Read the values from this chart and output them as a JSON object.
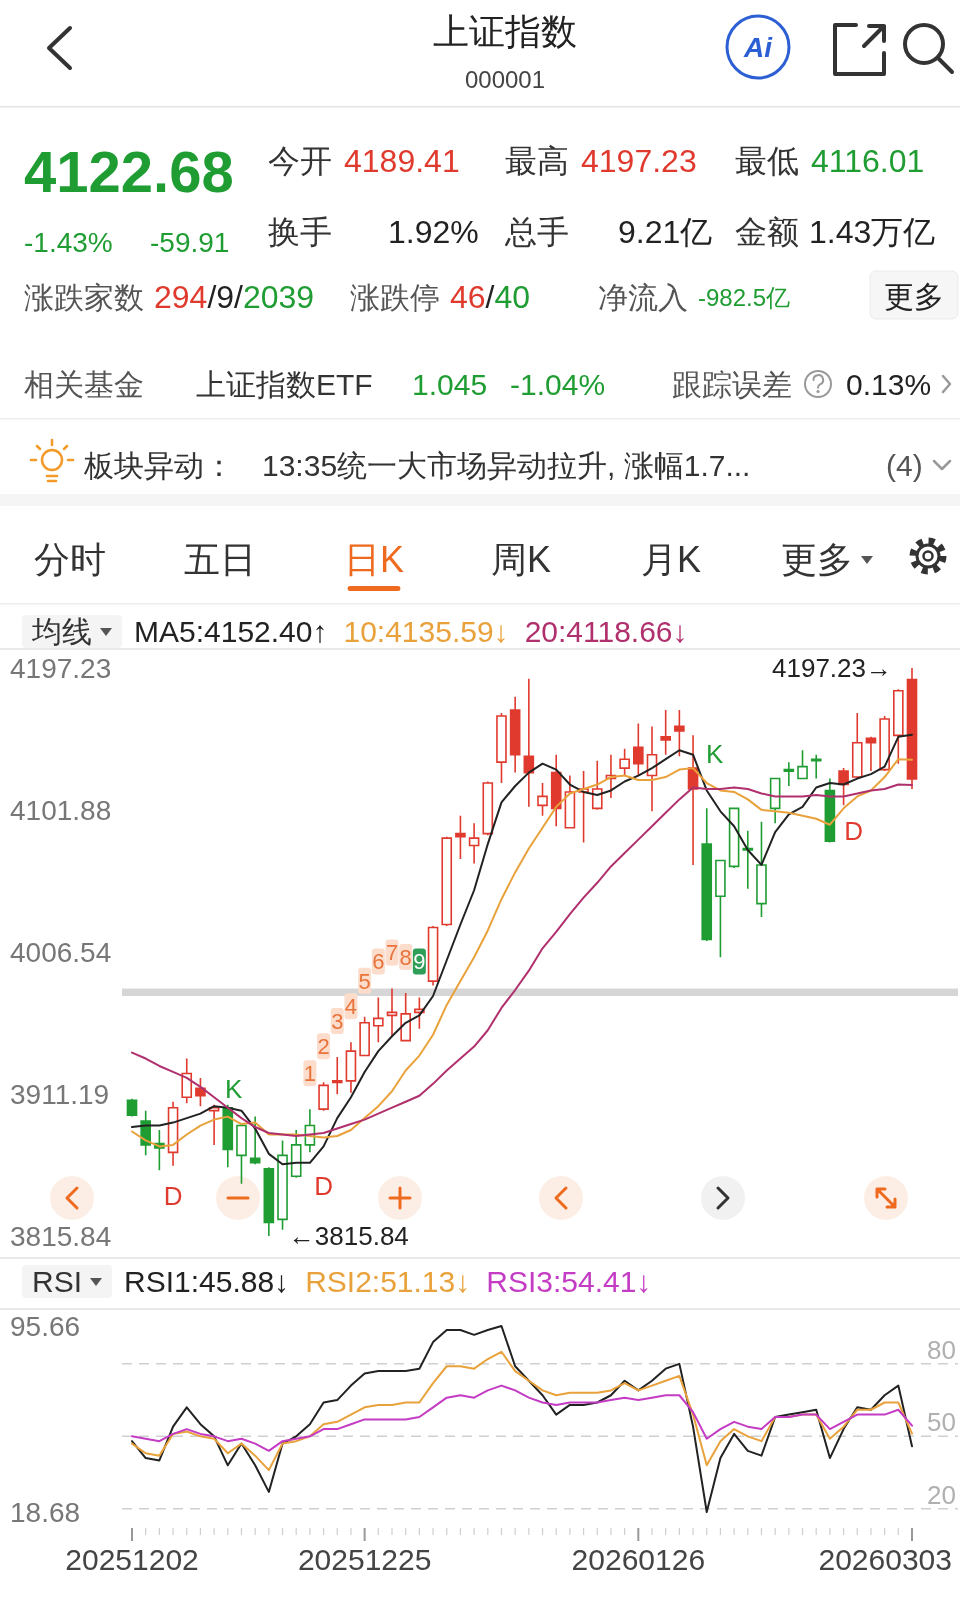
{
  "chart_data": [
    {
      "type": "candlestick",
      "title": "上证指数",
      "subtitle": "000001",
      "categories": [
        "20251202",
        null,
        null,
        null,
        null,
        null,
        null,
        null,
        null,
        null,
        null,
        null,
        null,
        null,
        null,
        null,
        null,
        "20251225",
        null,
        null,
        null,
        null,
        null,
        null,
        null,
        null,
        null,
        null,
        null,
        null,
        null,
        null,
        null,
        null,
        null,
        null,
        null,
        "20260126",
        null,
        null,
        null,
        null,
        null,
        null,
        null,
        null,
        null,
        null,
        null,
        null,
        null,
        null,
        null,
        null,
        null,
        null,
        null,
        "20260303"
      ],
      "ohlc": [
        [
          3907,
          3908,
          3896,
          3897
        ],
        [
          3893,
          3900,
          3870,
          3877
        ],
        [
          3878,
          3887,
          3860,
          3875
        ],
        [
          3872,
          3906,
          3863,
          3902
        ],
        [
          3909,
          3935,
          3905,
          3925
        ],
        [
          3915,
          3922,
          3903,
          3910
        ],
        [
          3900,
          3904,
          3877,
          3902
        ],
        [
          3902,
          3904,
          3862,
          3874
        ],
        [
          3870,
          3891,
          3851,
          3890
        ],
        [
          3868,
          3896,
          3864,
          3865
        ],
        [
          3861,
          3862,
          3815.84,
          3825
        ],
        [
          3827,
          3880,
          3820,
          3870
        ],
        [
          3856,
          3887,
          3855,
          3877
        ],
        [
          3877,
          3901,
          3872,
          3890
        ],
        [
          3901,
          3919,
          3900,
          3917
        ],
        [
          3919,
          3936,
          3911,
          3920
        ],
        [
          3920,
          3946,
          3912,
          3940
        ],
        [
          3937,
          3963,
          3937,
          3959
        ],
        [
          3957,
          3976,
          3946,
          3962
        ],
        [
          3964,
          3982,
          3950,
          3966
        ],
        [
          3947,
          3979,
          3947,
          3965
        ],
        [
          3966,
          3976,
          3955,
          3968
        ],
        [
          3987,
          4024,
          3984,
          4023
        ],
        [
          4025,
          4084,
          4024,
          4083
        ],
        [
          4086,
          4098,
          4069,
          4084
        ],
        [
          4078,
          4093,
          4066,
          4083
        ],
        [
          4086,
          4121,
          4085,
          4120
        ],
        [
          4134,
          4167,
          4120,
          4165
        ],
        [
          4169,
          4178,
          4127,
          4139
        ],
        [
          4138,
          4190,
          4104,
          4127
        ],
        [
          4105,
          4120,
          4098,
          4111
        ],
        [
          4127,
          4139,
          4091,
          4103
        ],
        [
          4090,
          4125,
          4090,
          4114
        ],
        [
          4114,
          4128,
          4080,
          4116
        ],
        [
          4103,
          4135,
          4102,
          4116
        ],
        [
          4123,
          4139,
          4110,
          4125
        ],
        [
          4130,
          4143,
          4125,
          4136
        ],
        [
          4144,
          4160,
          4125,
          4133
        ],
        [
          4125,
          4158,
          4101,
          4139
        ],
        [
          4151,
          4169,
          4139,
          4149
        ],
        [
          4158,
          4169,
          4138,
          4155
        ],
        [
          4130,
          4152,
          4065,
          4116
        ],
        [
          4079,
          4103,
          4014,
          4015
        ],
        [
          4044,
          4068,
          4003,
          4068
        ],
        [
          4064,
          4103,
          4063,
          4103
        ],
        [
          4076,
          4088,
          4049,
          4075
        ],
        [
          4039,
          4094,
          4030,
          4065
        ],
        [
          4103,
          4123,
          4093,
          4123
        ],
        [
          4128,
          4134,
          4118,
          4129
        ],
        [
          4123,
          4142,
          4123,
          4131
        ],
        [
          4135,
          4139,
          4123,
          4136
        ],
        [
          4115,
          4123,
          4080,
          4081
        ],
        [
          4128,
          4130,
          4105,
          4119
        ],
        [
          4124,
          4167,
          4123,
          4147
        ],
        [
          4150,
          4151,
          4128,
          4147
        ],
        [
          4129,
          4165,
          4128,
          4163
        ],
        [
          4152,
          4183,
          4133,
          4182
        ],
        [
          4189.41,
          4197.23,
          4116.01,
          4122.68
        ]
      ],
      "colors": [
        "#1f9d33",
        "#1f9d33",
        "#1f9d33",
        "#e03a2e",
        "#e03a2e",
        "#e03a2e",
        "#e03a2e",
        "#1f9d33",
        "#1f9d33",
        "#1f9d33",
        "#1f9d33",
        "#1f9d33",
        "#1f9d33",
        "#1f9d33",
        "#e03a2e",
        "#e03a2e",
        "#e03a2e",
        "#e03a2e",
        "#e03a2e",
        "#e03a2e",
        "#e03a2e",
        "#e03a2e",
        "#e03a2e",
        "#e03a2e",
        "#e03a2e",
        "#e03a2e",
        "#e03a2e",
        "#e03a2e",
        "#e03a2e",
        "#e03a2e",
        "#e03a2e",
        "#e03a2e",
        "#e03a2e",
        "#e03a2e",
        "#e03a2e",
        "#e03a2e",
        "#e03a2e",
        "#e03a2e",
        "#e03a2e",
        "#e03a2e",
        "#e03a2e",
        "#e03a2e",
        "#1f9d33",
        "#1f9d33",
        "#1f9d33",
        "#1f9d33",
        "#1f9d33",
        "#1f9d33",
        "#1f9d33",
        "#1f9d33",
        "#1f9d33",
        "#1f9d33",
        "#e03a2e",
        "#e03a2e",
        "#e03a2e",
        "#e03a2e",
        "#e03a2e",
        "#e03a2e"
      ],
      "series": [
        {
          "name": "MA5:4152.40↑",
          "type": "line",
          "color": "#222222",
          "values": [
            3889,
            3890,
            3890,
            3892,
            3895,
            3898,
            3903,
            3902,
            3900,
            3888,
            3871,
            3864,
            3865,
            3865,
            3876,
            3895,
            3909,
            3926,
            3940,
            3950,
            3959,
            3964,
            3977,
            4001,
            4025,
            4048,
            4079,
            4107,
            4118,
            4127,
            4133,
            4129,
            4119,
            4114,
            4112,
            4115,
            4121,
            4125,
            4130,
            4136,
            4142,
            4139,
            4115,
            4101,
            4091,
            4075,
            4065,
            4087,
            4099,
            4104,
            4117,
            4120,
            4119,
            4123,
            4126,
            4131,
            4151,
            4152.4
          ]
        },
        {
          "name": "10:4135.59↓",
          "type": "line",
          "color": "#e9a23b",
          "values": [
            3886,
            3880,
            3876,
            3877,
            3884,
            3890,
            3894,
            3896,
            3891,
            3892,
            3884,
            3884,
            3884,
            3883,
            3882,
            3883,
            3887,
            3895,
            3903,
            3913,
            3927,
            3937,
            3951,
            3971,
            3987,
            4003,
            4021,
            4042,
            4060,
            4076,
            4090,
            4104,
            4113,
            4116,
            4119,
            4124,
            4125,
            4122,
            4122,
            4124,
            4129,
            4130,
            4120,
            4115,
            4114,
            4109,
            4102,
            4101,
            4100,
            4098,
            4096,
            4092,
            4103,
            4111,
            4115,
            4124,
            4136,
            4135.59
          ]
        },
        {
          "name": "20:4118.66↓",
          "type": "line",
          "color": "#b0306e",
          "values": [
            3939,
            3935,
            3930,
            3926,
            3922,
            3916,
            3909,
            3902,
            3895,
            3889,
            3885,
            3884,
            3883,
            3884,
            3885,
            3888,
            3891,
            3894,
            3898,
            3902,
            3906,
            3910,
            3918,
            3927,
            3935,
            3943,
            3954,
            3969,
            3981,
            3994,
            4009,
            4020,
            4032,
            4043,
            4053,
            4064,
            4073,
            4082,
            4091,
            4100,
            4109,
            4117,
            4116,
            4116,
            4117,
            4116,
            4113,
            4111,
            4111,
            4111,
            4112,
            4111,
            4111,
            4113,
            4115,
            4116,
            4119,
            4118.66
          ]
        }
      ],
      "ylim": [
        3815.84,
        4197.23
      ],
      "yticks": [
        4197.23,
        4101.88,
        4006.54,
        3911.19,
        3815.84
      ],
      "tick_labels": "y",
      "legend": "top",
      "legend_title": "均线",
      "bands": [
        {
          "axis": "y",
          "from": 3977,
          "to": 3982,
          "color": "#d6d6d6"
        }
      ],
      "annotations": [
        "4122.68",
        "-1.43%",
        "-59.91",
        "今开",
        "4189.41",
        "最高",
        "4197.23",
        "最低",
        "4116.01",
        "换手",
        "1.92%",
        "总手",
        "9.21亿",
        "金额",
        "1.43万亿",
        "涨跌家数",
        "294",
        "/9/",
        "2039",
        "涨跌停",
        "46",
        "/",
        "40",
        "净流入",
        "-982.5亿",
        "更多",
        "相关基金",
        "上证指数ETF",
        "1.045",
        "-1.04%",
        "跟踪误差",
        "0.13%",
        "板块异动：",
        "13:35统一大市场异动拉升, 涨幅1.7...",
        "(4)",
        "分时",
        "五日",
        "日K",
        "周K",
        "月K",
        "更多",
        "Ai",
        "4197.23→",
        "←3815.84",
        "1",
        "2",
        "3",
        "4",
        "5",
        "6",
        "7",
        "8",
        "9",
        "K",
        "D",
        "D",
        "K",
        "D"
      ]
    },
    {
      "type": "line",
      "categories": [
        "20251202",
        null,
        null,
        null,
        null,
        null,
        null,
        null,
        null,
        null,
        null,
        null,
        null,
        null,
        null,
        null,
        null,
        "20251225",
        null,
        null,
        null,
        null,
        null,
        null,
        null,
        null,
        null,
        null,
        null,
        null,
        null,
        null,
        null,
        null,
        null,
        null,
        null,
        "20260126",
        null,
        null,
        null,
        null,
        null,
        null,
        null,
        null,
        null,
        null,
        null,
        null,
        null,
        null,
        null,
        null,
        null,
        null,
        null,
        "20260303"
      ],
      "series": [
        {
          "name": "RSI1:45.88↓",
          "color": "#222222",
          "values": [
            48,
            41,
            40,
            54,
            62,
            55,
            50,
            38,
            47,
            38,
            27,
            47,
            50,
            55,
            64,
            65,
            71,
            76,
            77,
            77,
            77,
            78,
            89,
            94,
            94,
            92,
            94,
            95.66,
            79,
            73,
            67,
            59,
            63,
            63,
            64,
            67,
            73,
            69,
            73,
            78,
            80,
            54,
            18.68,
            41,
            51,
            44,
            42,
            58,
            59,
            60,
            61,
            41,
            53,
            62,
            61,
            67,
            71,
            45.88
          ]
        },
        {
          "name": "RSI2:51.13↓",
          "color": "#e9a23b",
          "values": [
            47,
            43,
            42,
            51,
            52,
            50,
            49,
            43,
            47,
            42,
            36,
            47,
            48,
            50,
            55,
            56,
            59,
            62,
            63,
            63,
            64,
            64,
            72,
            79,
            79,
            78,
            82,
            85,
            77,
            73,
            69,
            67,
            68,
            68,
            68,
            69,
            72,
            69,
            71,
            73,
            75,
            59,
            38,
            48,
            53,
            50,
            48,
            58,
            58,
            59,
            59,
            49,
            54,
            61,
            61,
            64,
            64,
            51.13
          ]
        },
        {
          "name": "RSI3:54.41↓",
          "color": "#c43cc4",
          "values": [
            50,
            49,
            48,
            51,
            53,
            51,
            50,
            48,
            49,
            47,
            44,
            48,
            49,
            50,
            53,
            53,
            55,
            57,
            57,
            57,
            57,
            58,
            62,
            66,
            67,
            66,
            69,
            71,
            69,
            66,
            64,
            63,
            64,
            64,
            64,
            65,
            66,
            65,
            66,
            67,
            67,
            60,
            49,
            53,
            56,
            54,
            53,
            58,
            58,
            59,
            59,
            53,
            56,
            59,
            59,
            59,
            61,
            54.41
          ]
        }
      ],
      "ylim": [
        18.68,
        95.66
      ],
      "yticks": [
        95.66,
        18.68
      ],
      "legend": "top",
      "legend_title": "RSI",
      "ref_lines": [
        {
          "axis": "y",
          "value": 80,
          "label": "80",
          "line_style": "dashed"
        },
        {
          "axis": "y",
          "value": 50,
          "label": "50",
          "line_style": "dashed"
        },
        {
          "axis": "y",
          "value": 20,
          "label": "20",
          "line_style": "dashed"
        }
      ]
    }
  ]
}
